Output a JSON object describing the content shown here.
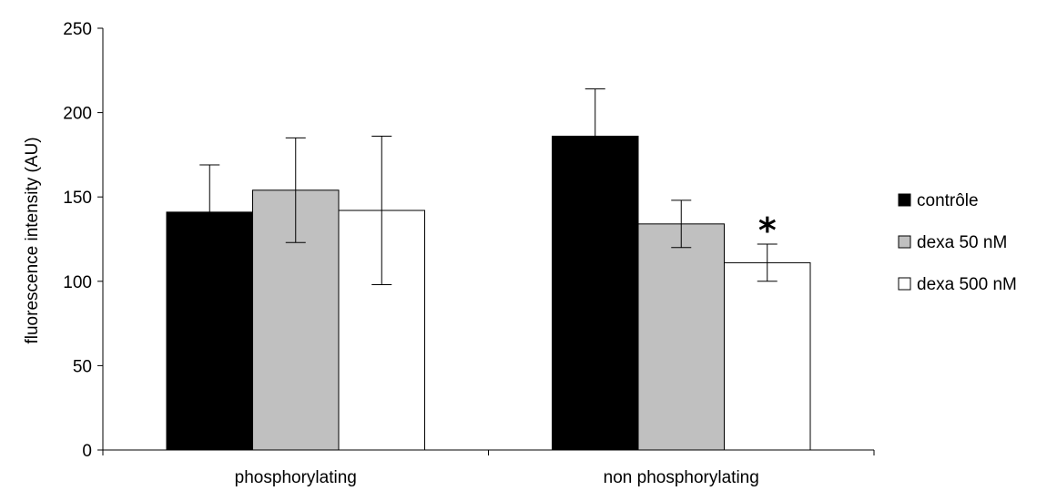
{
  "chart_data": {
    "type": "bar",
    "title": "",
    "xlabel": "",
    "ylabel": "fluorescence intensity  (AU)",
    "ylim": [
      0,
      250
    ],
    "yticks": [
      0,
      50,
      100,
      150,
      200,
      250
    ],
    "categories": [
      "phosphorylating",
      "non phosphorylating"
    ],
    "series": [
      {
        "name": "contrôle",
        "color": "#000000",
        "values": [
          141,
          186
        ],
        "errors": [
          28,
          28
        ]
      },
      {
        "name": "dexa 50 nM",
        "color": "#c0c0c0",
        "values": [
          154,
          134
        ],
        "errors": [
          31,
          14
        ]
      },
      {
        "name": "dexa 500 nM",
        "color": "#ffffff",
        "values": [
          142,
          111
        ],
        "errors": [
          44,
          11
        ]
      }
    ],
    "annotations": [
      {
        "text": "*",
        "category": "non phosphorylating",
        "series": "dexa 500 nM"
      }
    ],
    "legend_position": "right",
    "grid": false
  }
}
